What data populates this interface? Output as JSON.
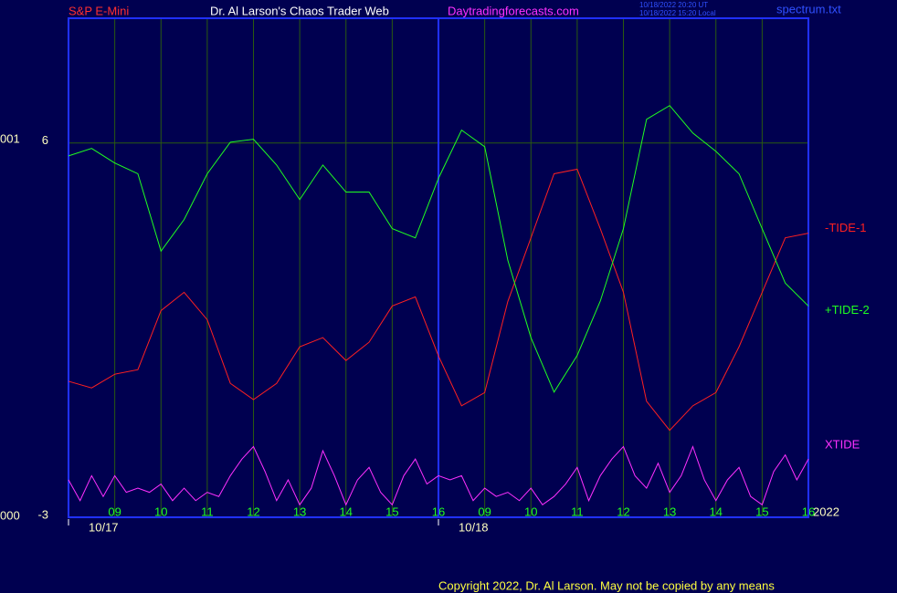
{
  "chart_data": {
    "type": "line",
    "header": {
      "symbol": "S&P E-Mini",
      "site": "Dr. Al Larson's Chaos Trader Web",
      "url": "Daytradingforecasts.com",
      "time_ut": "10/18/2022 20:20 UT",
      "time_local": "10/18/2022 15:20 Local",
      "file": "spectrum.txt"
    },
    "left_labels": [
      "001",
      "000"
    ],
    "dates": [
      "10/17",
      "10/18"
    ],
    "year": "2022",
    "copyright": "Copyright 2022, Dr. Al Larson. May not be copied by any means",
    "xlim": [
      0,
      16
    ],
    "ylim": [
      -3,
      9
    ],
    "yticks": [
      6,
      -3
    ],
    "xticks": [
      {
        "value": 1,
        "label": "09"
      },
      {
        "value": 2,
        "label": "10"
      },
      {
        "value": 3,
        "label": "11"
      },
      {
        "value": 4,
        "label": "12"
      },
      {
        "value": 5,
        "label": "13"
      },
      {
        "value": 6,
        "label": "14"
      },
      {
        "value": 7,
        "label": "15"
      },
      {
        "value": 8,
        "label": "16"
      },
      {
        "value": 9,
        "label": "09"
      },
      {
        "value": 10,
        "label": "10"
      },
      {
        "value": 11,
        "label": "11"
      },
      {
        "value": 12,
        "label": "12"
      },
      {
        "value": 13,
        "label": "13"
      },
      {
        "value": 14,
        "label": "14"
      },
      {
        "value": 15,
        "label": "15"
      },
      {
        "value": 16,
        "label": "16"
      }
    ],
    "grid": true,
    "series": [
      {
        "name": "-TIDE-1",
        "color": "#ff2020",
        "x": [
          0,
          0.5,
          1,
          1.5,
          2,
          2.5,
          3,
          3.5,
          4,
          4.5,
          5,
          5.5,
          6,
          6.5,
          7,
          7.5,
          8,
          8.5,
          9,
          9.5,
          10,
          10.5,
          11,
          11.5,
          12,
          12.5,
          13,
          13.5,
          14,
          14.5,
          15,
          15.5,
          16
        ],
        "values": [
          0.27,
          0.11,
          0.44,
          0.55,
          1.97,
          2.41,
          1.75,
          0.22,
          -0.17,
          0.22,
          1.1,
          1.32,
          0.77,
          1.21,
          2.08,
          2.3,
          0.88,
          -0.32,
          0,
          2.19,
          3.72,
          5.26,
          5.37,
          3.94,
          2.41,
          -0.21,
          -0.91,
          -0.32,
          0,
          1.1,
          2.41,
          3.72,
          3.83
        ]
      },
      {
        "name": "+TIDE-2",
        "color": "#20ff20",
        "x": [
          0,
          0.5,
          1,
          1.5,
          2,
          2.5,
          3,
          3.5,
          4,
          4.5,
          5,
          5.5,
          6,
          6.5,
          7,
          7.5,
          8,
          8.5,
          9,
          9.5,
          10,
          10.5,
          11,
          11.5,
          12,
          12.5,
          13,
          13.5,
          14,
          14.5,
          15,
          15.5,
          16
        ],
        "values": [
          5.69,
          5.87,
          5.52,
          5.26,
          3.4,
          4.16,
          5.26,
          6.02,
          6.09,
          5.47,
          4.64,
          5.47,
          4.82,
          4.82,
          3.94,
          3.72,
          5.15,
          6.31,
          5.91,
          3.18,
          1.32,
          0.01,
          0.89,
          2.2,
          3.94,
          6.57,
          6.9,
          6.24,
          5.8,
          5.26,
          3.94,
          2.63,
          2.08
        ]
      },
      {
        "name": "XTIDE",
        "color": "#ff30ff",
        "x": [
          0,
          0.25,
          0.5,
          0.75,
          1,
          1.25,
          1.5,
          1.75,
          2,
          2.25,
          2.5,
          2.75,
          3,
          3.25,
          3.5,
          3.75,
          4,
          4.25,
          4.5,
          4.75,
          5,
          5.25,
          5.5,
          5.75,
          6,
          6.25,
          6.5,
          6.75,
          7,
          7.25,
          7.5,
          7.75,
          8,
          8.25,
          8.5,
          8.75,
          9,
          9.25,
          9.5,
          9.75,
          10,
          10.25,
          10.5,
          10.75,
          11,
          11.25,
          11.5,
          11.75,
          12,
          12.25,
          12.5,
          12.75,
          13,
          13.25,
          13.5,
          13.75,
          14,
          14.25,
          14.5,
          14.75,
          15,
          15.25,
          15.5,
          15.75,
          16
        ],
        "values": [
          -2.1,
          -2.6,
          -2.0,
          -2.5,
          -2.0,
          -2.4,
          -2.3,
          -2.4,
          -2.2,
          -2.6,
          -2.3,
          -2.6,
          -2.4,
          -2.5,
          -2.0,
          -1.6,
          -1.3,
          -1.9,
          -2.6,
          -2.1,
          -2.7,
          -2.3,
          -1.4,
          -2.0,
          -2.7,
          -2.1,
          -1.8,
          -2.4,
          -2.7,
          -2.0,
          -1.6,
          -2.2,
          -2.0,
          -2.1,
          -2.0,
          -2.6,
          -2.3,
          -2.5,
          -2.4,
          -2.6,
          -2.3,
          -2.7,
          -2.5,
          -2.2,
          -1.8,
          -2.6,
          -2.0,
          -1.6,
          -1.3,
          -2.0,
          -2.3,
          -1.7,
          -2.4,
          -2.0,
          -1.3,
          -2.1,
          -2.6,
          -2.1,
          -1.8,
          -2.5,
          -2.7,
          -1.9,
          -1.5,
          -2.1,
          -1.6
        ]
      }
    ]
  }
}
